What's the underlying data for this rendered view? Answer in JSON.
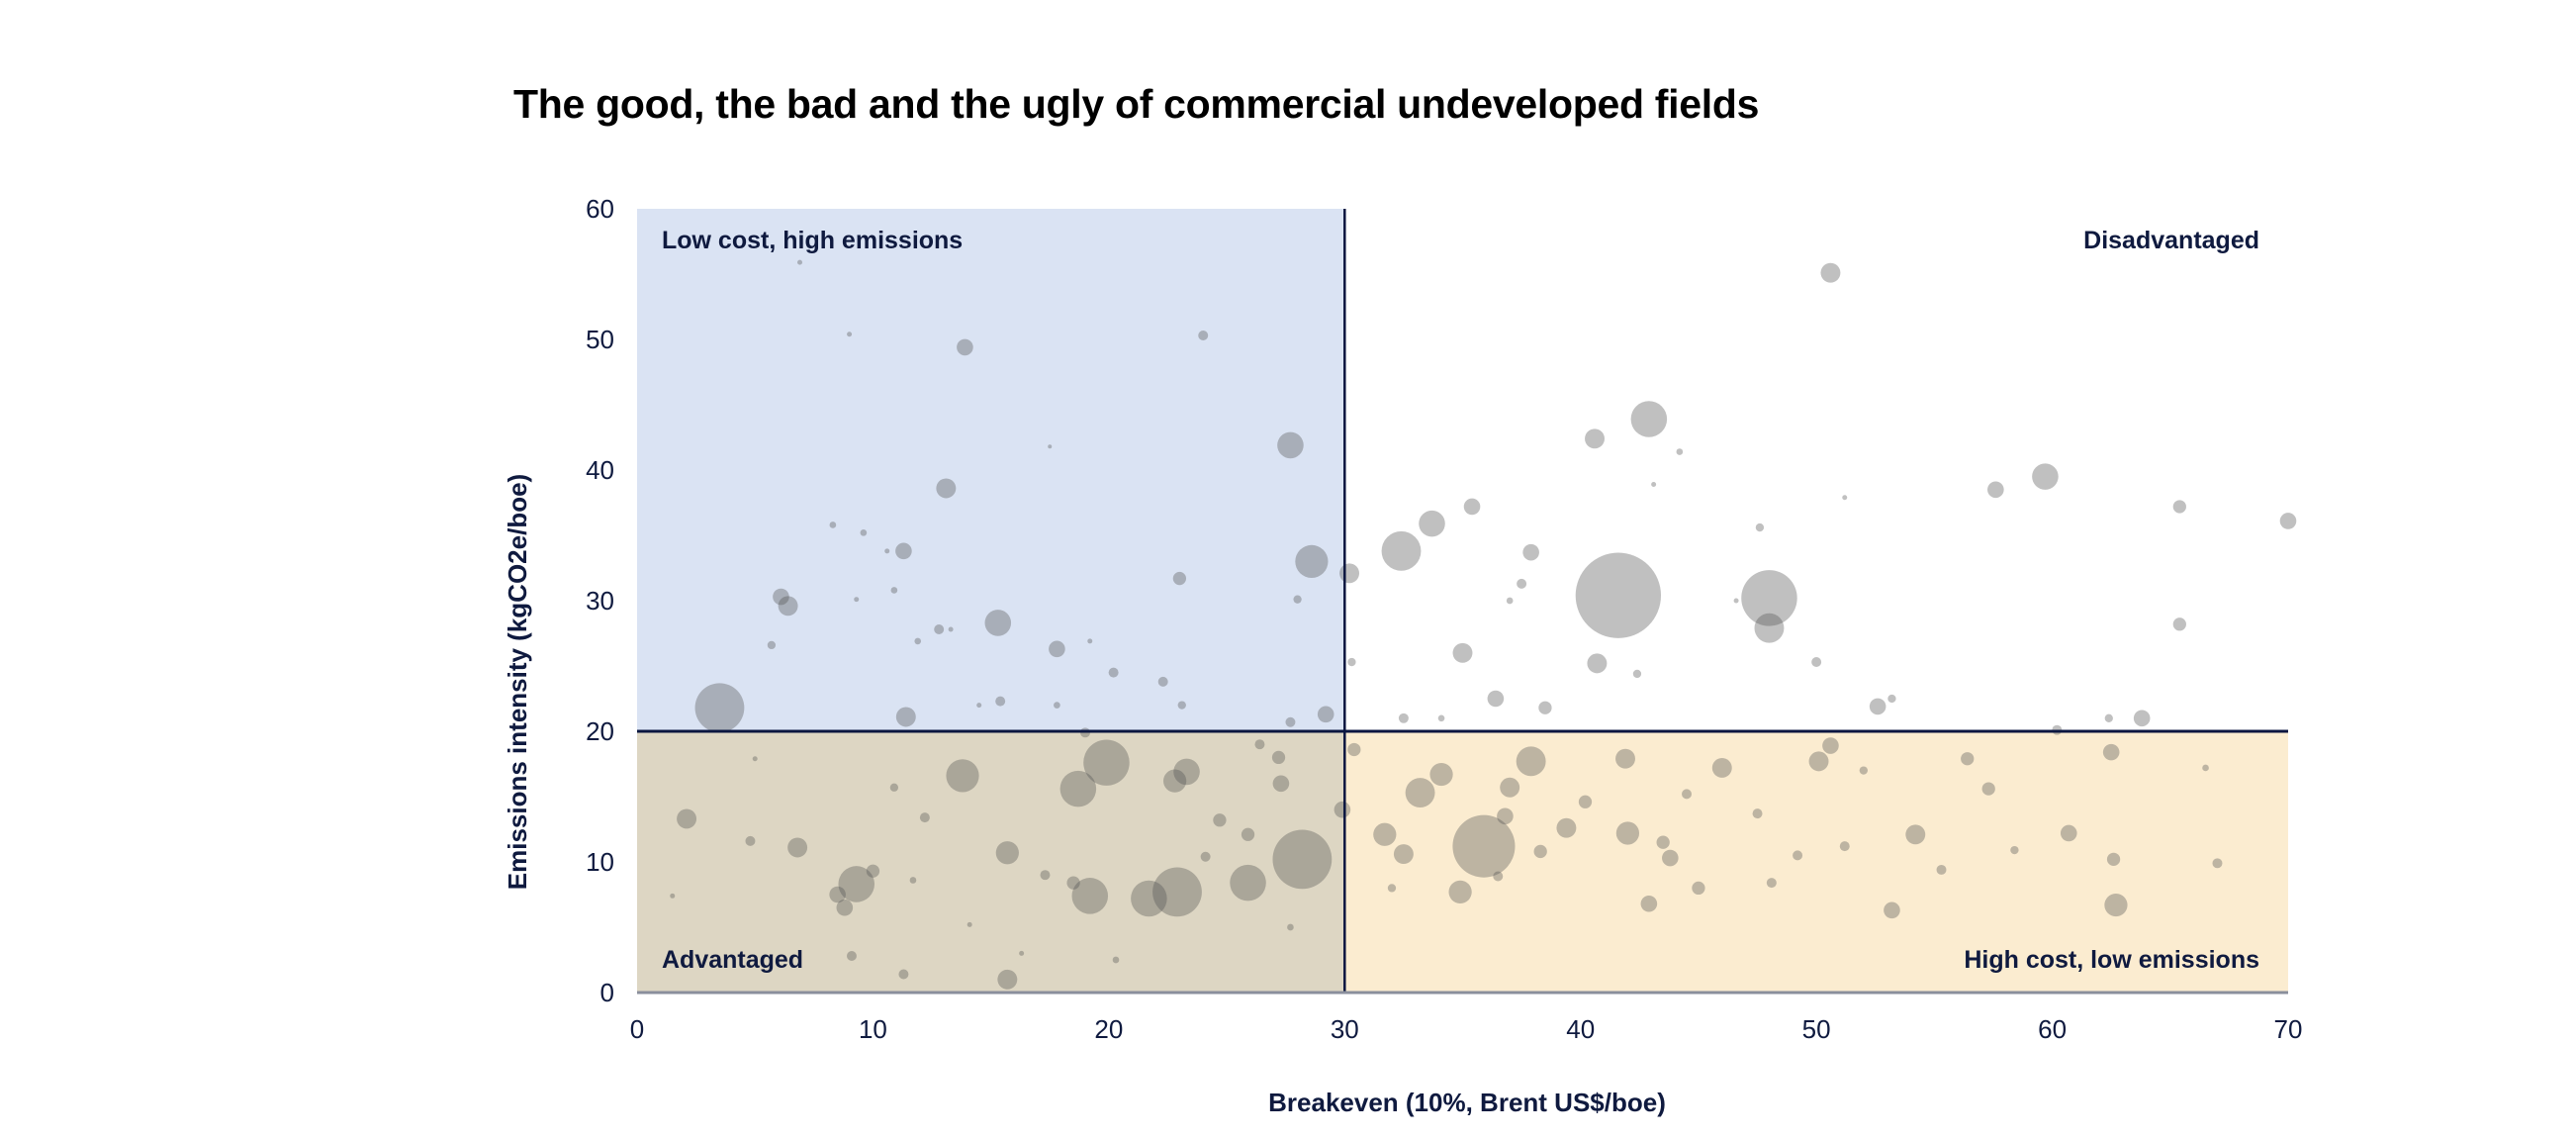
{
  "chart_data": {
    "type": "scatter",
    "subtype": "bubble",
    "title": "The good, the bad and the ugly of commercial undeveloped fields",
    "xlabel": "Breakeven (10%, Brent US$/boe)",
    "ylabel": "Emissions intensity (kgCO2e/boe)",
    "xlim": [
      0,
      70
    ],
    "ylim": [
      0,
      60
    ],
    "xticks": [
      "0",
      "10",
      "20",
      "30",
      "40",
      "50",
      "60",
      "70"
    ],
    "yticks": [
      "0",
      "10",
      "20",
      "30",
      "40",
      "50",
      "60"
    ],
    "grid": false,
    "thresholds": {
      "x": 30,
      "y": 20
    },
    "quadrants": {
      "top_left": {
        "label": "Low cost, high emissions",
        "color": "#dae3f3"
      },
      "top_right": {
        "label": "Disadvantaged",
        "color": "#ffffff"
      },
      "bottom_left": {
        "label": "Advantaged",
        "color": "#ddd6c3"
      },
      "bottom_right": {
        "label": "High cost, low emissions",
        "color": "#fbecd0"
      }
    },
    "colors": {
      "bubble": "#4f4f4f",
      "lines": "#0b1640",
      "text": "#0f1a3f"
    },
    "points": [
      {
        "x": 3.5,
        "y": 21.8,
        "size": 15
      },
      {
        "x": 13.9,
        "y": 49.4,
        "size": 5
      },
      {
        "x": 24.0,
        "y": 50.3,
        "size": 3
      },
      {
        "x": 27.7,
        "y": 41.9,
        "size": 8
      },
      {
        "x": 13.1,
        "y": 38.6,
        "size": 6
      },
      {
        "x": 28.6,
        "y": 33.0,
        "size": 10
      },
      {
        "x": 30.2,
        "y": 32.1,
        "size": 6
      },
      {
        "x": 6.1,
        "y": 30.3,
        "size": 5
      },
      {
        "x": 6.4,
        "y": 29.6,
        "size": 6
      },
      {
        "x": 15.3,
        "y": 28.3,
        "size": 8
      },
      {
        "x": 11.3,
        "y": 33.8,
        "size": 5
      },
      {
        "x": 23.0,
        "y": 31.7,
        "size": 4
      },
      {
        "x": 17.8,
        "y": 26.3,
        "size": 5
      },
      {
        "x": 11.4,
        "y": 21.1,
        "size": 6
      },
      {
        "x": 29.2,
        "y": 21.3,
        "size": 5
      },
      {
        "x": 20.2,
        "y": 24.5,
        "size": 3
      },
      {
        "x": 9.0,
        "y": 50.4,
        "size": 1.5
      },
      {
        "x": 6.9,
        "y": 55.9,
        "size": 1.5
      },
      {
        "x": 17.5,
        "y": 41.8,
        "size": 1.2
      },
      {
        "x": 8.3,
        "y": 35.8,
        "size": 2
      },
      {
        "x": 9.6,
        "y": 35.2,
        "size": 2
      },
      {
        "x": 10.6,
        "y": 33.8,
        "size": 1.5
      },
      {
        "x": 10.9,
        "y": 30.8,
        "size": 2
      },
      {
        "x": 9.3,
        "y": 30.1,
        "size": 1.5
      },
      {
        "x": 5.7,
        "y": 26.6,
        "size": 2.5
      },
      {
        "x": 12.8,
        "y": 27.8,
        "size": 3
      },
      {
        "x": 13.3,
        "y": 27.8,
        "size": 1.5
      },
      {
        "x": 11.9,
        "y": 26.9,
        "size": 2
      },
      {
        "x": 19.2,
        "y": 26.9,
        "size": 1.5
      },
      {
        "x": 22.3,
        "y": 23.8,
        "size": 3
      },
      {
        "x": 23.1,
        "y": 22.0,
        "size": 2.5
      },
      {
        "x": 17.8,
        "y": 22.0,
        "size": 2
      },
      {
        "x": 15.4,
        "y": 22.3,
        "size": 3
      },
      {
        "x": 14.5,
        "y": 22.0,
        "size": 1.5
      },
      {
        "x": 19.0,
        "y": 19.9,
        "size": 3
      },
      {
        "x": 27.7,
        "y": 20.7,
        "size": 3
      },
      {
        "x": 28.0,
        "y": 30.1,
        "size": 2.5
      },
      {
        "x": 30.3,
        "y": 25.3,
        "size": 2.5
      },
      {
        "x": 50.6,
        "y": 55.1,
        "size": 6
      },
      {
        "x": 42.9,
        "y": 43.9,
        "size": 11
      },
      {
        "x": 40.6,
        "y": 42.4,
        "size": 6
      },
      {
        "x": 59.7,
        "y": 39.5,
        "size": 8
      },
      {
        "x": 57.6,
        "y": 38.5,
        "size": 5
      },
      {
        "x": 65.4,
        "y": 37.2,
        "size": 4
      },
      {
        "x": 70.0,
        "y": 36.1,
        "size": 5
      },
      {
        "x": 33.7,
        "y": 35.9,
        "size": 8
      },
      {
        "x": 35.4,
        "y": 37.2,
        "size": 5
      },
      {
        "x": 32.4,
        "y": 33.8,
        "size": 12
      },
      {
        "x": 41.6,
        "y": 30.4,
        "size": 26
      },
      {
        "x": 48.0,
        "y": 30.2,
        "size": 17
      },
      {
        "x": 48.0,
        "y": 27.9,
        "size": 9
      },
      {
        "x": 37.9,
        "y": 33.7,
        "size": 5
      },
      {
        "x": 35.0,
        "y": 26.0,
        "size": 6
      },
      {
        "x": 40.7,
        "y": 25.2,
        "size": 6
      },
      {
        "x": 65.4,
        "y": 28.2,
        "size": 4
      },
      {
        "x": 52.6,
        "y": 21.9,
        "size": 5
      },
      {
        "x": 63.8,
        "y": 21.0,
        "size": 5
      },
      {
        "x": 60.2,
        "y": 20.1,
        "size": 3
      },
      {
        "x": 36.4,
        "y": 22.5,
        "size": 5
      },
      {
        "x": 38.5,
        "y": 21.8,
        "size": 4
      },
      {
        "x": 50.0,
        "y": 25.3,
        "size": 3
      },
      {
        "x": 37.5,
        "y": 31.3,
        "size": 3
      },
      {
        "x": 37.0,
        "y": 30.0,
        "size": 2
      },
      {
        "x": 44.2,
        "y": 41.4,
        "size": 2
      },
      {
        "x": 43.1,
        "y": 38.9,
        "size": 1.5
      },
      {
        "x": 51.2,
        "y": 37.9,
        "size": 1.5
      },
      {
        "x": 47.6,
        "y": 35.6,
        "size": 2.5
      },
      {
        "x": 46.6,
        "y": 30.0,
        "size": 1.5
      },
      {
        "x": 53.2,
        "y": 22.5,
        "size": 2.5
      },
      {
        "x": 62.4,
        "y": 21.0,
        "size": 2.5
      },
      {
        "x": 34.1,
        "y": 21.0,
        "size": 2
      },
      {
        "x": 32.5,
        "y": 21.0,
        "size": 3
      },
      {
        "x": 42.4,
        "y": 24.4,
        "size": 2.5
      },
      {
        "x": 19.9,
        "y": 17.6,
        "size": 14
      },
      {
        "x": 18.7,
        "y": 15.6,
        "size": 11
      },
      {
        "x": 13.8,
        "y": 16.6,
        "size": 10
      },
      {
        "x": 23.3,
        "y": 16.9,
        "size": 8
      },
      {
        "x": 22.8,
        "y": 16.2,
        "size": 7
      },
      {
        "x": 2.1,
        "y": 13.3,
        "size": 6
      },
      {
        "x": 6.8,
        "y": 11.1,
        "size": 6
      },
      {
        "x": 15.7,
        "y": 10.7,
        "size": 7
      },
      {
        "x": 9.3,
        "y": 8.3,
        "size": 11
      },
      {
        "x": 19.2,
        "y": 7.4,
        "size": 11
      },
      {
        "x": 21.7,
        "y": 7.2,
        "size": 11
      },
      {
        "x": 22.9,
        "y": 7.7,
        "size": 15
      },
      {
        "x": 25.9,
        "y": 8.4,
        "size": 11
      },
      {
        "x": 28.2,
        "y": 10.2,
        "size": 18
      },
      {
        "x": 15.7,
        "y": 1.0,
        "size": 6
      },
      {
        "x": 11.3,
        "y": 1.4,
        "size": 3
      },
      {
        "x": 9.1,
        "y": 2.8,
        "size": 3
      },
      {
        "x": 20.3,
        "y": 2.5,
        "size": 2
      },
      {
        "x": 29.9,
        "y": 14.0,
        "size": 5
      },
      {
        "x": 25.9,
        "y": 12.1,
        "size": 4
      },
      {
        "x": 24.7,
        "y": 13.2,
        "size": 4
      },
      {
        "x": 27.3,
        "y": 16.0,
        "size": 5
      },
      {
        "x": 27.2,
        "y": 18.0,
        "size": 4
      },
      {
        "x": 26.4,
        "y": 19.0,
        "size": 3
      },
      {
        "x": 8.5,
        "y": 7.5,
        "size": 5
      },
      {
        "x": 8.8,
        "y": 6.5,
        "size": 5
      },
      {
        "x": 10.0,
        "y": 9.3,
        "size": 4
      },
      {
        "x": 4.8,
        "y": 11.6,
        "size": 3
      },
      {
        "x": 12.2,
        "y": 13.4,
        "size": 3
      },
      {
        "x": 10.9,
        "y": 15.7,
        "size": 2.5
      },
      {
        "x": 5.0,
        "y": 17.9,
        "size": 1.5
      },
      {
        "x": 18.5,
        "y": 8.4,
        "size": 4
      },
      {
        "x": 17.3,
        "y": 9.0,
        "size": 3
      },
      {
        "x": 24.1,
        "y": 10.4,
        "size": 3
      },
      {
        "x": 27.7,
        "y": 5.0,
        "size": 2
      },
      {
        "x": 11.7,
        "y": 8.6,
        "size": 2
      },
      {
        "x": 16.3,
        "y": 3.0,
        "size": 1.5
      },
      {
        "x": 14.1,
        "y": 5.2,
        "size": 1.5
      },
      {
        "x": 1.5,
        "y": 7.4,
        "size": 1.5
      },
      {
        "x": 35.9,
        "y": 11.2,
        "size": 19
      },
      {
        "x": 33.2,
        "y": 15.3,
        "size": 9
      },
      {
        "x": 34.1,
        "y": 16.7,
        "size": 7
      },
      {
        "x": 37.9,
        "y": 17.7,
        "size": 9
      },
      {
        "x": 31.7,
        "y": 12.1,
        "size": 7
      },
      {
        "x": 32.5,
        "y": 10.6,
        "size": 6
      },
      {
        "x": 34.9,
        "y": 7.7,
        "size": 7
      },
      {
        "x": 37.0,
        "y": 15.7,
        "size": 6
      },
      {
        "x": 39.4,
        "y": 12.6,
        "size": 6
      },
      {
        "x": 41.9,
        "y": 17.9,
        "size": 6
      },
      {
        "x": 42.0,
        "y": 12.2,
        "size": 7
      },
      {
        "x": 42.9,
        "y": 6.8,
        "size": 5
      },
      {
        "x": 46.0,
        "y": 17.2,
        "size": 6
      },
      {
        "x": 50.1,
        "y": 17.7,
        "size": 6
      },
      {
        "x": 50.6,
        "y": 18.9,
        "size": 5
      },
      {
        "x": 54.2,
        "y": 12.1,
        "size": 6
      },
      {
        "x": 53.2,
        "y": 6.3,
        "size": 5
      },
      {
        "x": 62.7,
        "y": 6.7,
        "size": 7
      },
      {
        "x": 62.5,
        "y": 18.4,
        "size": 5
      },
      {
        "x": 62.6,
        "y": 10.2,
        "size": 4
      },
      {
        "x": 60.7,
        "y": 12.2,
        "size": 5
      },
      {
        "x": 57.3,
        "y": 15.6,
        "size": 4
      },
      {
        "x": 56.4,
        "y": 17.9,
        "size": 4
      },
      {
        "x": 67.0,
        "y": 9.9,
        "size": 3
      },
      {
        "x": 43.5,
        "y": 11.5,
        "size": 4
      },
      {
        "x": 43.8,
        "y": 10.3,
        "size": 5
      },
      {
        "x": 45.0,
        "y": 8.0,
        "size": 4
      },
      {
        "x": 48.1,
        "y": 8.4,
        "size": 3
      },
      {
        "x": 49.2,
        "y": 10.5,
        "size": 3
      },
      {
        "x": 51.2,
        "y": 11.2,
        "size": 3
      },
      {
        "x": 55.3,
        "y": 9.4,
        "size": 3
      },
      {
        "x": 36.8,
        "y": 13.5,
        "size": 5
      },
      {
        "x": 38.3,
        "y": 10.8,
        "size": 4
      },
      {
        "x": 40.2,
        "y": 14.6,
        "size": 4
      },
      {
        "x": 36.5,
        "y": 8.9,
        "size": 3
      },
      {
        "x": 30.4,
        "y": 18.6,
        "size": 4
      },
      {
        "x": 32.0,
        "y": 8.0,
        "size": 2.5
      },
      {
        "x": 44.5,
        "y": 15.2,
        "size": 3
      },
      {
        "x": 47.5,
        "y": 13.7,
        "size": 3
      },
      {
        "x": 58.4,
        "y": 10.9,
        "size": 2.5
      },
      {
        "x": 66.5,
        "y": 17.2,
        "size": 2
      },
      {
        "x": 52.0,
        "y": 17.0,
        "size": 2.5
      }
    ]
  }
}
